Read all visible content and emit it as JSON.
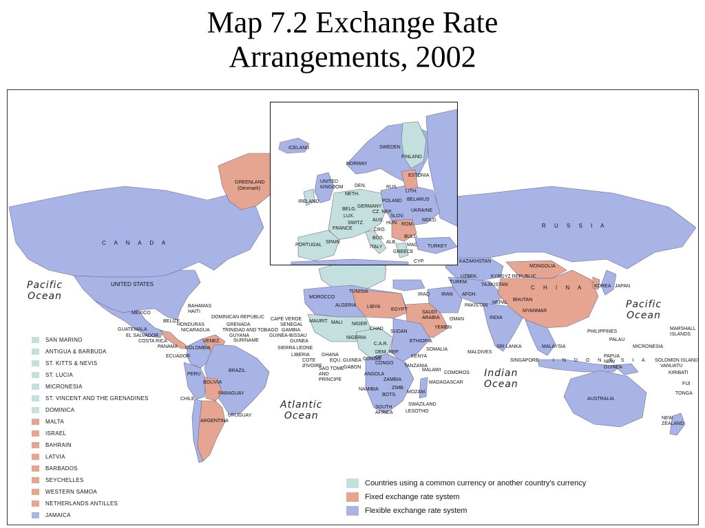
{
  "title_line1": "Map 7.2 Exchange Rate",
  "title_line2": "Arrangements, 2002",
  "colors": {
    "common_currency": "#c3e0df",
    "fixed": "#e6a591",
    "flexible": "#a8b4e6",
    "water": "#ffffff",
    "border": "#6b6b8a"
  },
  "legend": [
    {
      "label": "Countries using a common currency or another country's currency",
      "category": "common_currency"
    },
    {
      "label": "Fixed exchange rate system",
      "category": "fixed"
    },
    {
      "label": "Flexible exchange rate system",
      "category": "flexible"
    }
  ],
  "small_countries": [
    {
      "label": "SAN MARINO",
      "category": "common_currency"
    },
    {
      "label": "ANTIGUA & BARBUDA",
      "category": "common_currency"
    },
    {
      "label": "ST. KITTS & NEVIS",
      "category": "common_currency"
    },
    {
      "label": "ST. LUCIA",
      "category": "common_currency"
    },
    {
      "label": "MICRONESIA",
      "category": "common_currency"
    },
    {
      "label": "ST. VINCENT AND THE GRENADINES",
      "category": "common_currency"
    },
    {
      "label": "DOMINICA",
      "category": "common_currency"
    },
    {
      "label": "MALTA",
      "category": "fixed"
    },
    {
      "label": "ISRAEL",
      "category": "fixed"
    },
    {
      "label": "BAHRAIN",
      "category": "fixed"
    },
    {
      "label": "LATVIA",
      "category": "fixed"
    },
    {
      "label": "BARBADOS",
      "category": "fixed"
    },
    {
      "label": "SEYCHELLES",
      "category": "fixed"
    },
    {
      "label": "WESTERN SAMOA",
      "category": "fixed"
    },
    {
      "label": "NETHERLANDS ANTILLES",
      "category": "fixed"
    },
    {
      "label": "JAMAICA",
      "category": "flexible"
    }
  ],
  "oceans": {
    "pacific_1": "Pacific",
    "pacific_1b": "Ocean",
    "pacific_2": "Pacific",
    "pacific_2b": "Ocean",
    "atlantic": "Atlantic",
    "atlantic_b": "Ocean",
    "indian": "Indian",
    "indian_b": "Ocean"
  },
  "labels": {
    "canada": "C A N A D A",
    "united_states": "UNITED STATES",
    "mexico": "MEXICO",
    "greenland": "GREENLAND",
    "greenland_sub": "(Denmark)",
    "russia": "R U S S I A",
    "china": "C H I N A",
    "mongolia": "MONGOLIA",
    "india": "INDIA",
    "brazil": "BRAZIL",
    "argentina": "ARGENTINA",
    "bolivia": "BOLIVIA",
    "paraguay": "PARAGUAY",
    "uruguay": "URUGUAY",
    "peru": "PERU",
    "chile": "CHILE",
    "colombia": "COLOMBIA",
    "venez": "VENEZ.",
    "ecuador": "ECUADOR",
    "guyana": "GUYANA",
    "suriname": "SURINAME",
    "australia": "AUSTRALIA",
    "new_zealand": "NEW ZEALAND",
    "libya": "LIBYA",
    "egypt": "EGYPT",
    "algeria": "ALGERIA",
    "morocco": "MOROCCO",
    "tunisia": "TUNISIA",
    "mali": "MALI",
    "niger": "NIGER",
    "chad": "CHAD",
    "sudan": "SUDAN",
    "mauritania": "MAURIT.",
    "nigeria": "NIGERIA",
    "ethiopia": "ETHIOPIA",
    "somalia": "SOMALIA",
    "kenya": "KENYA",
    "tanzania": "TANZANIA",
    "car": "C.A.R.",
    "dem_rep_congo": "DEM. REP. OF CONGO",
    "congo": "CONGO",
    "angola": "ANGOLA",
    "zambia": "ZAMBIA",
    "zimb": "ZIMB.",
    "mozam": "MOZAM.",
    "namibia": "NAMIBIA",
    "botswana": "BOTS.",
    "south_africa": "SOUTH AFRICA",
    "madagascar": "MADAGASCAR",
    "saudi_arabia": "SAUDI ARABIA",
    "iran": "IRAN",
    "iraq": "IRAQ",
    "turkm": "TURKM.",
    "uzbek": "UZBEK.",
    "kazakhstan": "KAZAKHSTAN",
    "kyrgyz": "KYRGYZ REPUBLIC",
    "tajikistan": "TAJIKISTAN",
    "afgh": "AFGH.",
    "pakistan": "PAKISTAN",
    "nepal": "NEPAL",
    "bhutan": "BHUTAN",
    "myanmar": "MYANMAR",
    "yemen": "YEMEN",
    "oman": "OMAN",
    "japan": "JAPAN",
    "korea": "KOREA",
    "philippines": "PHILIPPINES",
    "palau": "PALAU",
    "micronesia": "MICRONESIA",
    "marshall": "MARSHALL ISLANDS",
    "papua": "PAPUA NEW GUINEA",
    "solomon": "SOLOMON ISLANDS",
    "vanuatu": "VANUATU",
    "kiribati": "KIRIBATI",
    "fiji": "FIJI",
    "tonga": "TONGA",
    "indonesia": "I N D O N E S I A",
    "malaysia": "MALAYSIA",
    "singapore": "SINGAPORE",
    "sri_lanka": "SRI LANKA",
    "maldives": "MALDIVES",
    "comoros": "COMOROS",
    "malawi": "MALAWI",
    "swaziland": "SWAZILAND",
    "lesotho": "LESOTHO",
    "cape_verde": "CAPE VERDE",
    "senegal": "SENEGAL",
    "gambia": "GAMBIA",
    "guinea_bissau": "GUINEA-BISSAU",
    "guinea": "GUINEA",
    "sierra_leone": "SIERRA LEONE",
    "liberia": "LIBERIA",
    "cote": "COTE d'IVOIRE",
    "ghana": "GHANA",
    "eq_guinea": "EQU. GUINEA",
    "gabon": "GABON",
    "sao_tome": "SAO TOME AND PRINCIPE",
    "bahamas": "BAHAMAS",
    "haiti": "HAITI",
    "dominican": "DOMINICAN REPUBLIC",
    "belize": "BELIZE",
    "honduras": "HONDURAS",
    "nicaragua": "NICARAGUA",
    "guatemala": "GUATEMALA",
    "el_salvador": "EL SALVADOR",
    "costa_rica": "COSTA RICA",
    "panama": "PANAMA",
    "grenada": "GRENADA",
    "trinidad": "TRINIDAD AND TOBAGO"
  },
  "inset_labels": {
    "iceland": "ICELAND",
    "norway": "NORWAY",
    "sweden": "SWEDEN",
    "finland": "FINLAND",
    "estonia": "ESTONIA",
    "lith": "LITH.",
    "belarus": "BELARUS",
    "rus": "RUS.",
    "united_kingdom": "UNITED KINGDOM",
    "ireland": "IRELAND",
    "den": "DEN.",
    "neth": "NETH.",
    "belg": "BELG.",
    "lux": "LUX.",
    "germany": "GERMANY",
    "poland": "POLAND",
    "cz_rep": "CZ. REP.",
    "slov": "SLOV.",
    "ukraine": "UKRAINE",
    "aus": "AUS.",
    "hun": "HUN.",
    "switz": "SWITZ.",
    "france": "FRANCE",
    "cro": "CRO.",
    "bos": "BOS.",
    "rom": "ROM.",
    "mold": "MOLD.",
    "bulg": "BULG.",
    "alb": "ALB.",
    "mac": "MAC.",
    "greece": "GREECE",
    "italy": "ITALY",
    "spain": "SPAIN",
    "portugal": "PORTUGAL",
    "turkey": "TURKEY",
    "cyp": "CYP."
  }
}
